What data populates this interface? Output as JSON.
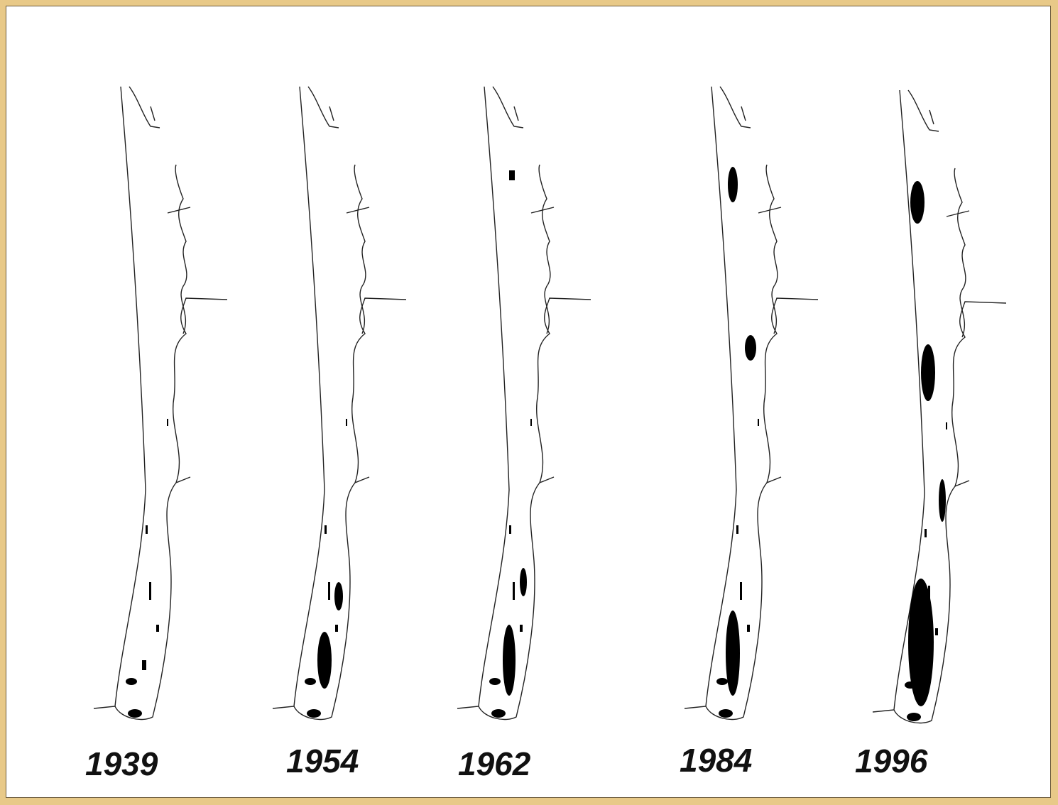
{
  "panels": [
    {
      "label": "1939"
    },
    {
      "label": "1954"
    },
    {
      "label": "1962"
    },
    {
      "label": "1984"
    },
    {
      "label": "1996"
    }
  ]
}
